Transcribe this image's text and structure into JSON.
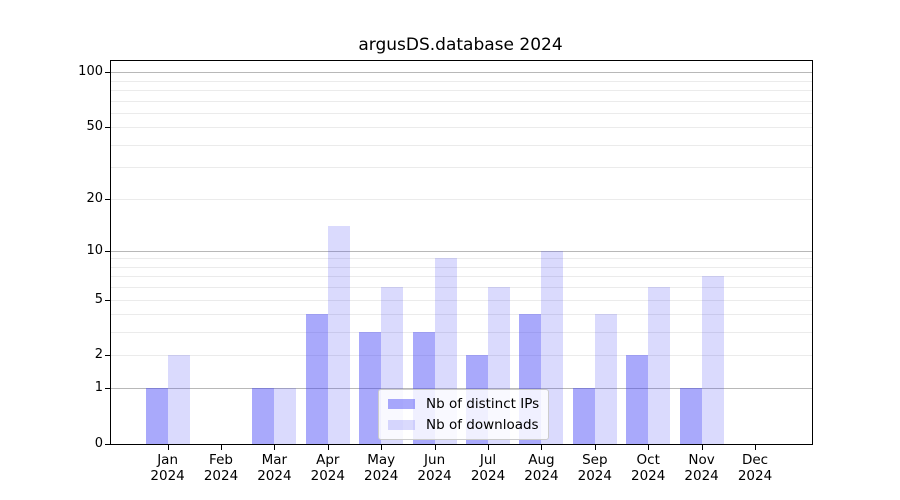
{
  "chart_data": {
    "type": "bar",
    "title": "argusDS.database 2024",
    "categories": [
      "Jan 2024",
      "Feb 2024",
      "Mar 2024",
      "Apr 2024",
      "May 2024",
      "Jun 2024",
      "Jul 2024",
      "Aug 2024",
      "Sep 2024",
      "Oct 2024",
      "Nov 2024",
      "Dec 2024"
    ],
    "x_tick_months": [
      "Jan",
      "Feb",
      "Mar",
      "Apr",
      "May",
      "Jun",
      "Jul",
      "Aug",
      "Sep",
      "Oct",
      "Nov",
      "Dec"
    ],
    "x_tick_year": "2024",
    "series": [
      {
        "name": "Nb of distinct IPs",
        "color": "rgba(60,60,245,0.44)",
        "color_on_white": "#aaaafa",
        "values": [
          1,
          0,
          1,
          4,
          3,
          3,
          2,
          4,
          1,
          2,
          1,
          0
        ]
      },
      {
        "name": "Nb of downloads",
        "color": "rgba(60,60,245,0.19)",
        "color_on_white": "#dadafd",
        "values": [
          2,
          0,
          1,
          14,
          6,
          9,
          6,
          10,
          4,
          6,
          7,
          0
        ]
      }
    ],
    "yscale": "log1p",
    "ylim": [
      0,
      115
    ],
    "y_tick_values": [
      0,
      1,
      2,
      5,
      10,
      20,
      50,
      100
    ],
    "y_tick_labels": [
      "0",
      "1",
      "2",
      "5",
      "10",
      "20",
      "50",
      "100"
    ],
    "y_major_gridlines": [
      1,
      10,
      100
    ],
    "y_minor_gridlines": [
      2,
      3,
      4,
      5,
      6,
      7,
      8,
      9,
      20,
      30,
      40,
      50,
      60,
      70,
      80,
      90
    ],
    "grid": true,
    "legend_position": "lower center"
  },
  "colors": {
    "background": "#ffffff",
    "spine": "#000000",
    "grid_major": "#b8b8b8",
    "grid_minor": "#ebebeb",
    "bar_distinct_ips": "#aaaafa",
    "bar_downloads": "#dadafd",
    "text": "#000000"
  }
}
